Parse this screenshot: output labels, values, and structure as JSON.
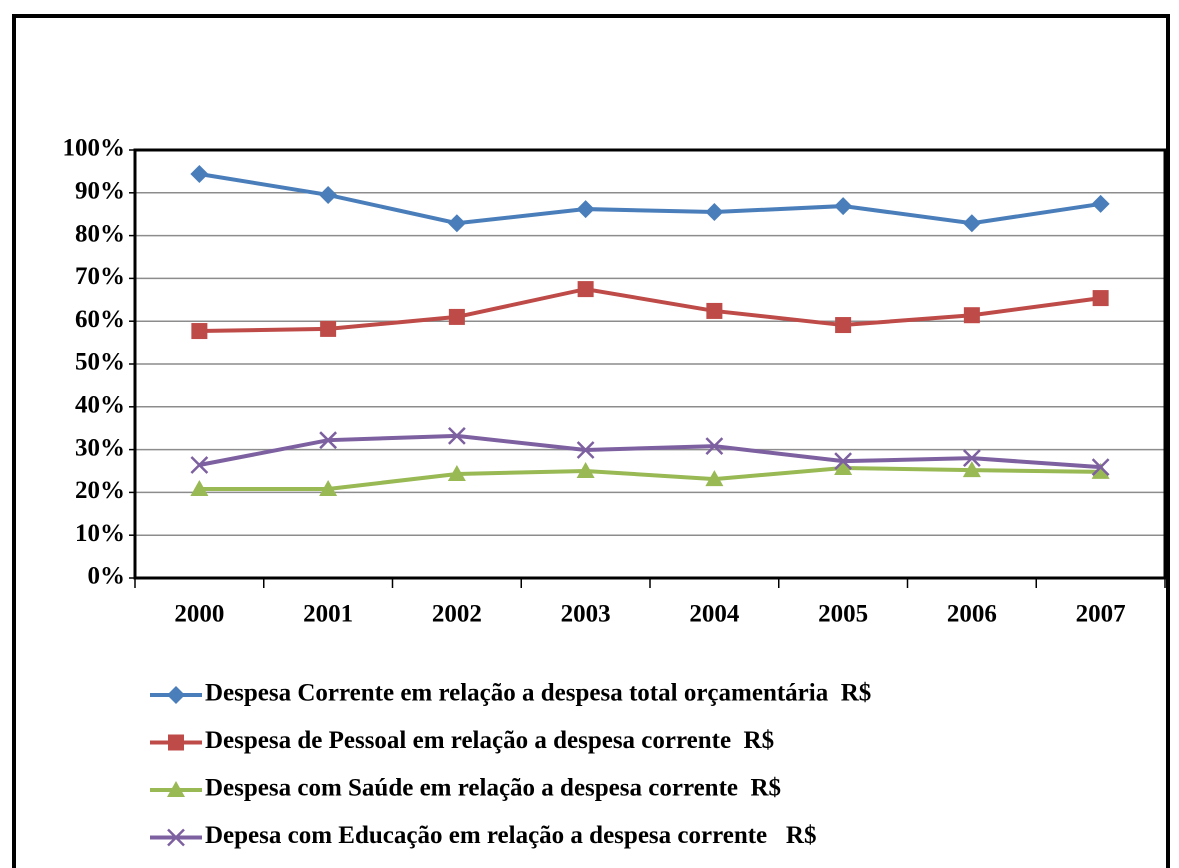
{
  "chart_data": {
    "type": "line",
    "categories": [
      "2000",
      "2001",
      "2002",
      "2003",
      "2004",
      "2005",
      "2006",
      "2007"
    ],
    "series": [
      {
        "name": "Despesa Corrente em relação a despesa total orçamentária  R$",
        "color": "#4a7ebb",
        "marker": "diamond",
        "values": [
          94.4,
          89.5,
          82.9,
          86.2,
          85.5,
          86.9,
          82.9,
          87.4
        ]
      },
      {
        "name": "Despesa de Pessoal em relação a despesa corrente  R$",
        "color": "#be4b48",
        "marker": "square",
        "values": [
          57.7,
          58.2,
          61.0,
          67.5,
          62.4,
          59.1,
          61.4,
          65.4
        ]
      },
      {
        "name": "Despesa com Saúde em relação a despesa corrente  R$",
        "color": "#98b954",
        "marker": "triangle",
        "values": [
          20.8,
          20.8,
          24.3,
          25.0,
          23.1,
          25.7,
          25.2,
          24.8
        ]
      },
      {
        "name": "Depesa com Educação em relação a despesa corrente   R$",
        "color": "#7d60a0",
        "marker": "x",
        "values": [
          26.4,
          32.2,
          33.2,
          29.9,
          30.8,
          27.3,
          28.0,
          25.9
        ]
      }
    ],
    "ylim": [
      0,
      100
    ],
    "yticks": [
      {
        "value": 0,
        "label": "0%"
      },
      {
        "value": 10,
        "label": "10%"
      },
      {
        "value": 20,
        "label": "20%"
      },
      {
        "value": 30,
        "label": "30%"
      },
      {
        "value": 40,
        "label": "40%"
      },
      {
        "value": 50,
        "label": "50%"
      },
      {
        "value": 60,
        "label": "60%"
      },
      {
        "value": 70,
        "label": "70%"
      },
      {
        "value": 80,
        "label": "80%"
      },
      {
        "value": 90,
        "label": "90%"
      },
      {
        "value": 100,
        "label": "100%"
      }
    ],
    "grid": true,
    "legend": "bottom"
  }
}
